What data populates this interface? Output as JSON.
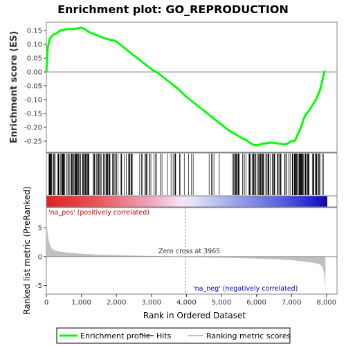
{
  "colors": {
    "profile": "#00ff00",
    "hits": "#000000",
    "metric": "#c0c0c0",
    "pos_label": "#cc0000",
    "neg_label": "#0000cc",
    "zero_line": "#808080"
  },
  "chart_data": {
    "type": "line",
    "title": "Enrichment plot: GO_REPRODUCTION",
    "ylabel_es": "Enrichment score (ES)",
    "ylabel_metric": "Ranked list metric (PreRanked)",
    "xlabel": "Rank in Ordered Dataset",
    "xlim": [
      0,
      8300
    ],
    "es_ylim": [
      -0.29,
      0.18
    ],
    "metric_ylim": [
      -6.5,
      8.5
    ],
    "x_ticks": [
      0,
      1000,
      2000,
      3000,
      4000,
      5000,
      6000,
      7000,
      8000
    ],
    "x_tick_labels": [
      "0",
      "1,000",
      "2,000",
      "3,000",
      "4,000",
      "5,000",
      "6,000",
      "7,000",
      "8,000"
    ],
    "es_ticks": [
      0.15,
      0.1,
      0.05,
      0.0,
      -0.05,
      -0.1,
      -0.15,
      -0.2,
      -0.25
    ],
    "es_tick_labels": [
      "0.15",
      "0.10",
      "0.05",
      "0.00",
      "-0.05",
      "-0.10",
      "-0.15",
      "-0.20",
      "-0.25"
    ],
    "metric_ticks": [
      5,
      0,
      -5
    ],
    "metric_tick_labels": [
      "5",
      "0",
      "-5"
    ],
    "es_profile": {
      "x": [
        0,
        40,
        100,
        200,
        300,
        400,
        500,
        600,
        700,
        800,
        900,
        1000,
        1100,
        1200,
        1300,
        1400,
        1500,
        1600,
        1700,
        1800,
        1900,
        2000,
        2100,
        2200,
        2300,
        2400,
        2500,
        2600,
        2700,
        2800,
        2900,
        3000,
        3200,
        3400,
        3600,
        3800,
        4000,
        4200,
        4400,
        4600,
        4800,
        5000,
        5200,
        5400,
        5600,
        5700,
        5800,
        5900,
        6000,
        6100,
        6200,
        6300,
        6400,
        6500,
        6600,
        6700,
        6800,
        6900,
        7000,
        7100,
        7200,
        7300,
        7350,
        7400,
        7500,
        7600,
        7700,
        7800,
        7850,
        7900,
        7950
      ],
      "y": [
        0.0,
        0.09,
        0.12,
        0.135,
        0.14,
        0.15,
        0.152,
        0.155,
        0.155,
        0.156,
        0.158,
        0.16,
        0.155,
        0.145,
        0.14,
        0.135,
        0.13,
        0.125,
        0.12,
        0.117,
        0.115,
        0.11,
        0.1,
        0.09,
        0.08,
        0.07,
        0.06,
        0.05,
        0.04,
        0.03,
        0.02,
        0.01,
        -0.005,
        -0.025,
        -0.045,
        -0.065,
        -0.09,
        -0.11,
        -0.13,
        -0.15,
        -0.17,
        -0.19,
        -0.21,
        -0.225,
        -0.24,
        -0.245,
        -0.255,
        -0.262,
        -0.265,
        -0.262,
        -0.258,
        -0.258,
        -0.255,
        -0.256,
        -0.258,
        -0.26,
        -0.262,
        -0.258,
        -0.25,
        -0.248,
        -0.22,
        -0.19,
        -0.17,
        -0.155,
        -0.14,
        -0.12,
        -0.1,
        -0.07,
        -0.05,
        -0.02,
        0.005
      ]
    },
    "zero_cross": 3965,
    "zero_cross_label": "Zero cross at 3965",
    "pos_label": "'na_pos' (positively correlated)",
    "neg_label": "'na_neg' (negatively correlated)",
    "legend": [
      "Enrichment profile",
      "Hits",
      "Ranking metric scores"
    ]
  }
}
